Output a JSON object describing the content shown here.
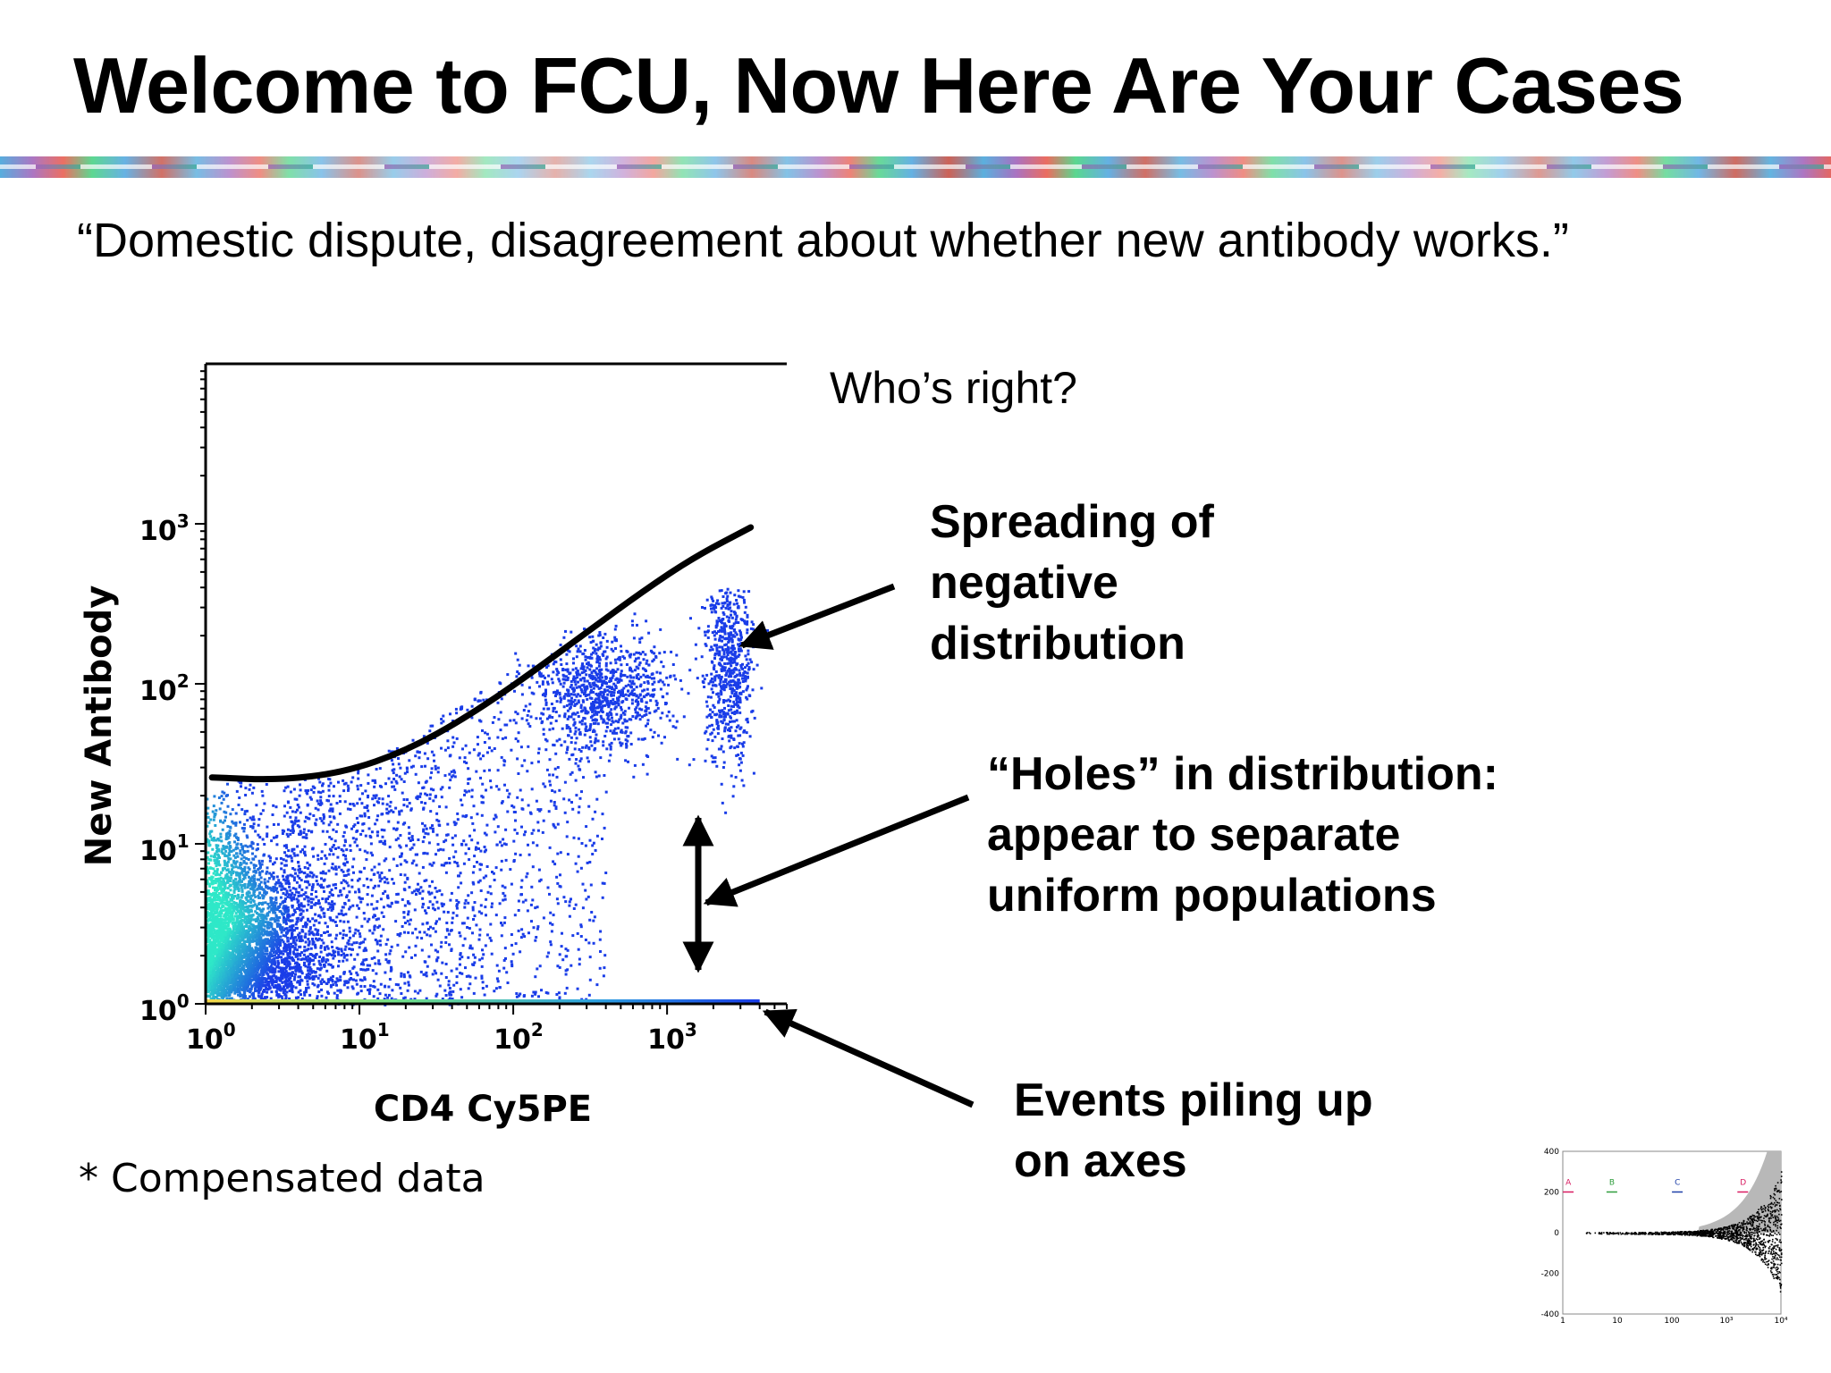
{
  "slide": {
    "title": "Welcome to FCU, Now Here Are Your Cases",
    "quote": "“Domestic dispute, disagreement about whether new antibody works.”",
    "question": "Who’s right?",
    "annotations": {
      "spreading": [
        "Spreading of",
        "negative",
        "distribution"
      ],
      "holes": [
        "“Holes” in distribution:",
        "appear to separate",
        "uniform populations"
      ],
      "piling": [
        "Events piling up",
        "on axes"
      ]
    },
    "footnote": "* Compensated data"
  },
  "chart_data": [
    {
      "type": "scatter",
      "title": "",
      "xlabel": "CD4 Cy5PE",
      "ylabel": "New Antibody",
      "xscale": "log",
      "yscale": "log",
      "xlim": [
        1,
        6000
      ],
      "ylim": [
        1,
        10000
      ],
      "x_ticks": [
        {
          "value": 1,
          "base": "10",
          "exp": "0"
        },
        {
          "value": 10,
          "base": "10",
          "exp": "1"
        },
        {
          "value": 100,
          "base": "10",
          "exp": "2"
        },
        {
          "value": 1000,
          "base": "10",
          "exp": "3"
        }
      ],
      "y_ticks": [
        {
          "value": 1,
          "base": "10",
          "exp": "0"
        },
        {
          "value": 10,
          "base": "10",
          "exp": "1"
        },
        {
          "value": 100,
          "base": "10",
          "exp": "2"
        },
        {
          "value": 1000,
          "base": "10",
          "exp": "3"
        }
      ],
      "colormap": "density (blue low → cyan/green high)",
      "populations": [
        {
          "name": "negative",
          "x_range": [
            1,
            6
          ],
          "y_range": [
            1,
            25
          ],
          "density": "high"
        },
        {
          "name": "spread",
          "x_range": [
            6,
            300
          ],
          "y_range": [
            1,
            60
          ],
          "density": "medium"
        },
        {
          "name": "cluster_mid",
          "x_center": 400,
          "y_center": 90,
          "density": "medium"
        },
        {
          "name": "cluster_high",
          "x_center": 2500,
          "y_center": 130,
          "density": "medium"
        }
      ],
      "overlay_curve": {
        "name": "",
        "x": [
          1.1,
          3,
          8,
          20,
          50,
          120,
          300,
          700,
          1500,
          3500
        ],
        "y": [
          26,
          25,
          28,
          38,
          62,
          110,
          210,
          380,
          620,
          950
        ]
      },
      "overlay_color": "#000000",
      "point_color_low": "#1a3de8",
      "point_color_high": "#2ee8c8"
    },
    {
      "type": "scatter",
      "title": "",
      "xscale": "log",
      "xlim": [
        1,
        10000
      ],
      "ylim": [
        -400,
        400
      ],
      "x_tick_labels": [
        "1",
        "10",
        "100",
        "10³",
        "10⁴"
      ],
      "y_tick_labels": [
        "400",
        "200",
        "0",
        "-200",
        "-400"
      ],
      "markers": [
        "A",
        "B",
        "C",
        "D"
      ],
      "marker_colors": [
        "#d81b60",
        "#2e9d3c",
        "#1e3fa8",
        "#d81b60"
      ],
      "band_color": "#b8b8b8",
      "point_color": "#000000"
    }
  ]
}
